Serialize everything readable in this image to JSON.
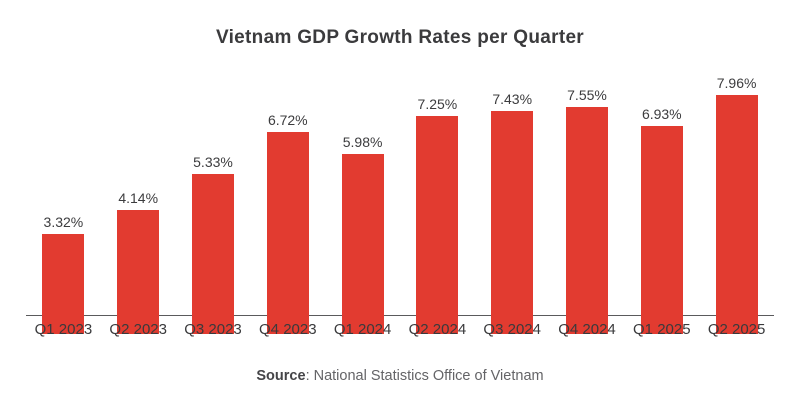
{
  "chart": {
    "title": "Vietnam GDP Growth Rates per Quarter",
    "source_label": "Source",
    "source_text": ": National Statistics Office of Vietnam"
  },
  "chart_data": {
    "type": "bar",
    "title": "Vietnam GDP Growth Rates per Quarter",
    "categories": [
      "Q1 2023",
      "Q2 2023",
      "Q3 2023",
      "Q4 2023",
      "Q1 2024",
      "Q2 2024",
      "Q3 2024",
      "Q4 2024",
      "Q1 2025",
      "Q2 2025"
    ],
    "values": [
      3.32,
      4.14,
      5.33,
      6.72,
      5.98,
      7.25,
      7.43,
      7.55,
      6.93,
      7.96
    ],
    "value_labels": [
      "3.32%",
      "4.14%",
      "5.33%",
      "6.72%",
      "5.98%",
      "7.25%",
      "7.43%",
      "7.55%",
      "6.93%",
      "7.96%"
    ],
    "unit": "%",
    "ylim": [
      0,
      8
    ],
    "grid": false,
    "legend": false,
    "bar_color": "#e23b30",
    "source": "National Statistics Office of Vietnam"
  },
  "colors": {
    "bar": "#e23b30",
    "title_text": "#3b3b3d",
    "value_label_text": "#3c3c3e",
    "x_label_text": "#3a3a3c",
    "axis_line": "#5a5a5c",
    "source_text": "#646467"
  }
}
